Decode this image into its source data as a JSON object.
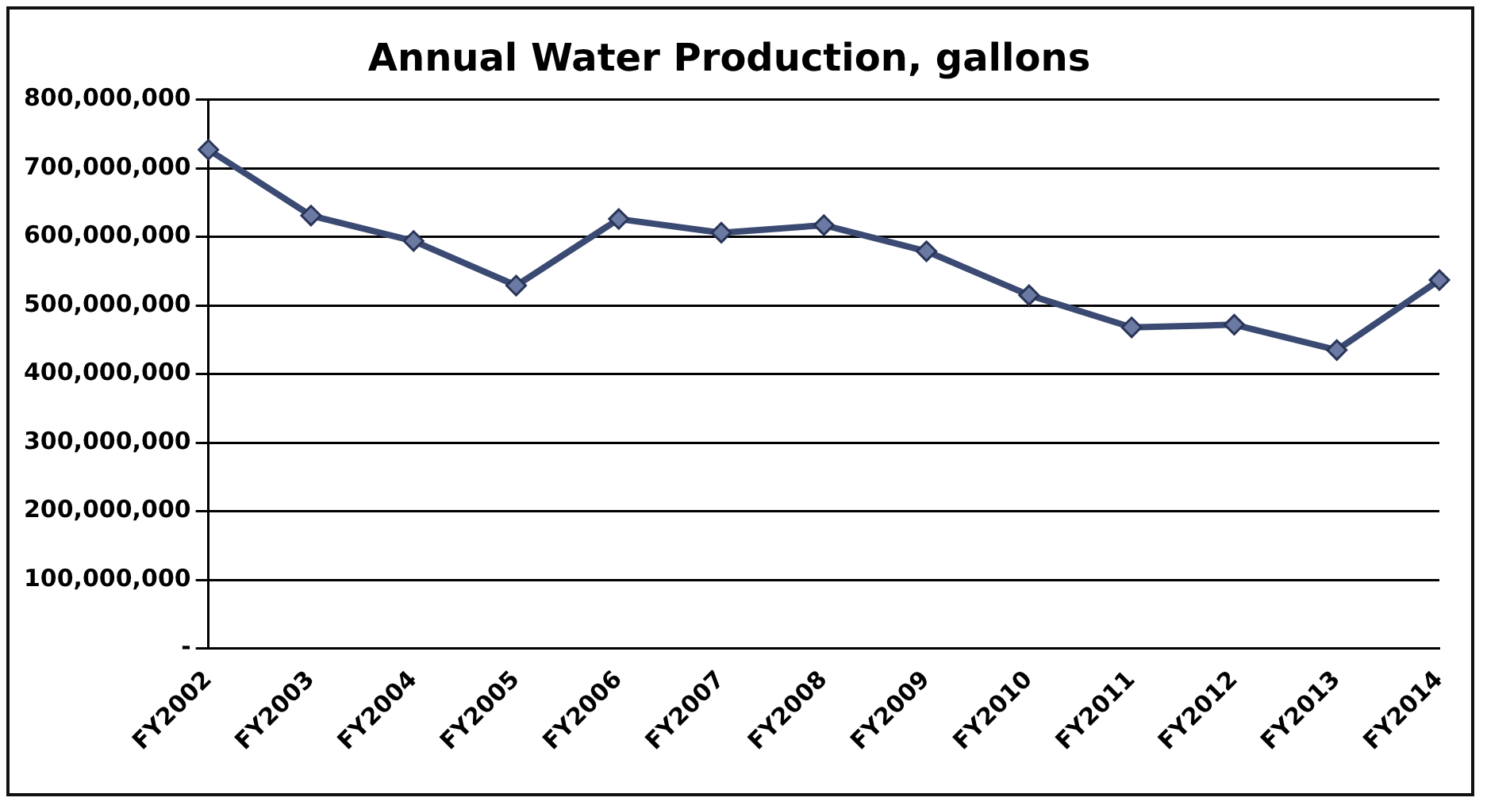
{
  "chart_data": {
    "type": "line",
    "title": "Annual Water Production, gallons",
    "categories": [
      "FY2002",
      "FY2003",
      "FY2004",
      "FY2005",
      "FY2006",
      "FY2007",
      "FY2008",
      "FY2009",
      "FY2010",
      "FY2011",
      "FY2012",
      "FY2013",
      "FY2014"
    ],
    "series": [
      {
        "color": "#3b4a72",
        "values": [
          727000000,
          631000000,
          594000000,
          529000000,
          626000000,
          606000000,
          617000000,
          579000000,
          515000000,
          468000000,
          472000000,
          435000000,
          537000000
        ]
      }
    ],
    "ylim": [
      0,
      800000000
    ],
    "yticks": [
      {
        "value": 0,
        "label": "-"
      },
      {
        "value": 100000000,
        "label": "100,000,000"
      },
      {
        "value": 200000000,
        "label": "200,000,000"
      },
      {
        "value": 300000000,
        "label": "300,000,000"
      },
      {
        "value": 400000000,
        "label": "400,000,000"
      },
      {
        "value": 500000000,
        "label": "500,000,000"
      },
      {
        "value": 600000000,
        "label": "600,000,000"
      },
      {
        "value": 700000000,
        "label": "700,000,000"
      },
      {
        "value": 800000000,
        "label": "800,000,000"
      }
    ],
    "grid": "y",
    "legend": false,
    "marker": "diamond",
    "line_style": "solid"
  }
}
